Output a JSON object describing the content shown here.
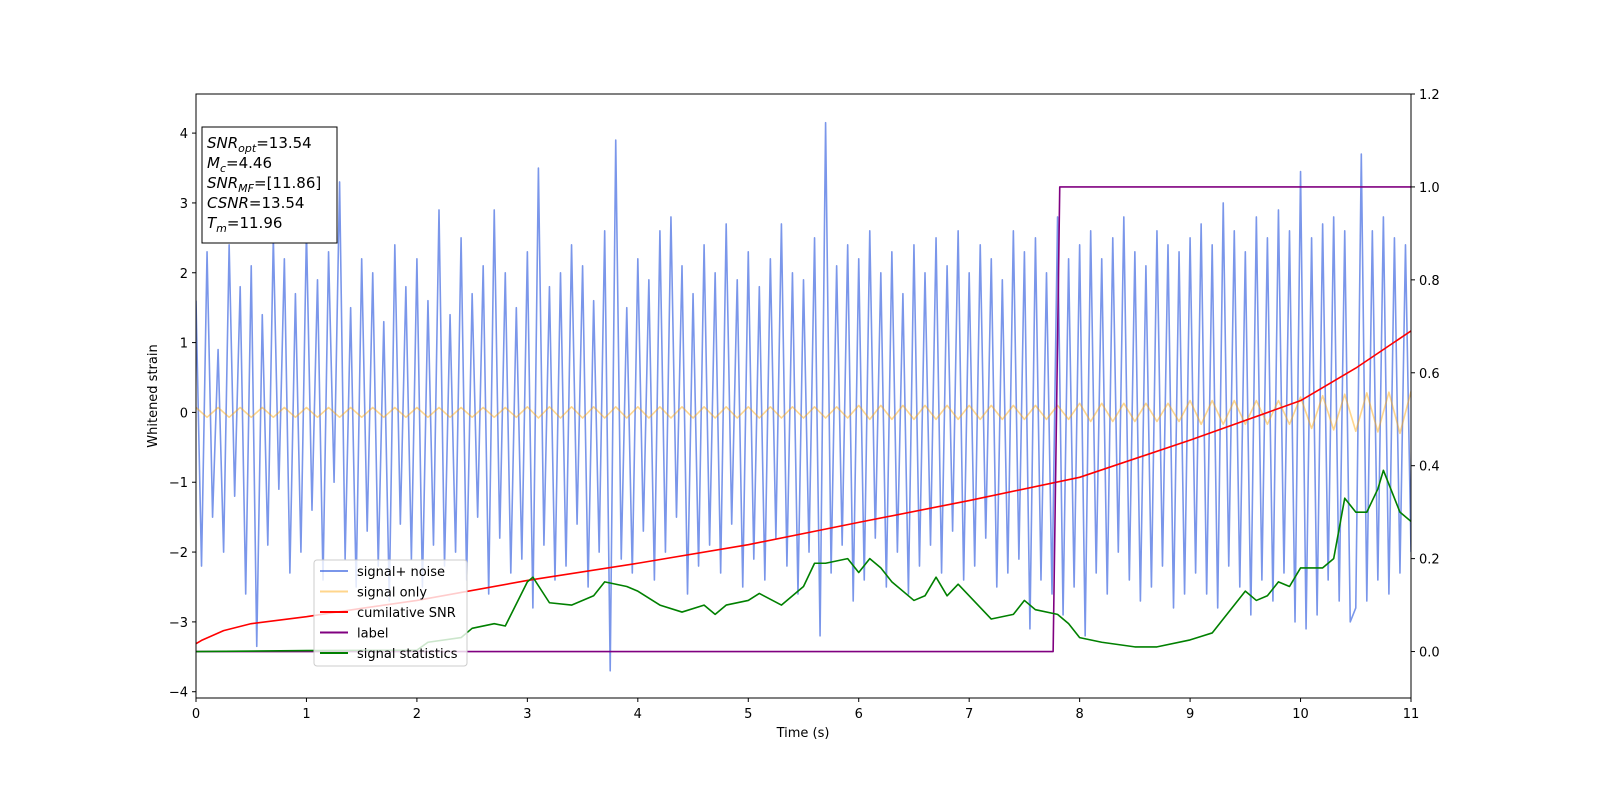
{
  "chart_data": {
    "type": "line",
    "xlabel": "Time (s)",
    "ylabel": "Whitened strain",
    "xlim": [
      0,
      11
    ],
    "ylim": [
      -4.09,
      4.56
    ],
    "y2lim": [
      -0.1,
      1.2
    ],
    "xticks": [
      0,
      1,
      2,
      3,
      4,
      5,
      6,
      7,
      8,
      9,
      10,
      11
    ],
    "yticks": [
      {
        "value": -4,
        "label": "−4"
      },
      {
        "value": -3,
        "label": "−3"
      },
      {
        "value": -2,
        "label": "−2"
      },
      {
        "value": -1,
        "label": "−1"
      },
      0,
      1,
      2,
      3,
      4
    ],
    "y2ticks": [
      {
        "value": 0,
        "label": "0.0"
      },
      0.2,
      0.4,
      0.6,
      0.8,
      {
        "value": 1,
        "label": "1.0"
      },
      1.2
    ],
    "annotation": [
      {
        "main": "SNR",
        "sub": "opt",
        "rest": "=13.54"
      },
      {
        "main": "M",
        "sub": "c",
        "rest": "=4.46"
      },
      {
        "main": "SNR",
        "sub": "MF",
        "rest": "=[11.86]"
      },
      {
        "main": "CSNR",
        "sub": "",
        "rest": "=13.54"
      },
      {
        "main": "T",
        "sub": "m",
        "rest": "=11.96"
      }
    ],
    "series": [
      {
        "name": "signal+ noise",
        "color": "#4169e1",
        "opacity": 0.7,
        "x": [
          0,
          0.05,
          0.1,
          0.15,
          0.2,
          0.25,
          0.3,
          0.35,
          0.4,
          0.45,
          0.5,
          0.55,
          0.6,
          0.65,
          0.7,
          0.75,
          0.8,
          0.85,
          0.9,
          0.95,
          1,
          1.05,
          1.1,
          1.15,
          1.2,
          1.25,
          1.3,
          1.35,
          1.4,
          1.45,
          1.5,
          1.55,
          1.6,
          1.65,
          1.7,
          1.75,
          1.8,
          1.85,
          1.9,
          1.95,
          2,
          2.05,
          2.1,
          2.15,
          2.2,
          2.25,
          2.3,
          2.35,
          2.4,
          2.45,
          2.5,
          2.55,
          2.6,
          2.65,
          2.7,
          2.75,
          2.8,
          2.85,
          2.9,
          2.95,
          3,
          3.05,
          3.1,
          3.15,
          3.2,
          3.25,
          3.3,
          3.35,
          3.4,
          3.45,
          3.5,
          3.55,
          3.6,
          3.65,
          3.7,
          3.75,
          3.8,
          3.85,
          3.9,
          3.95,
          4,
          4.05,
          4.1,
          4.15,
          4.2,
          4.25,
          4.3,
          4.35,
          4.4,
          4.45,
          4.5,
          4.55,
          4.6,
          4.65,
          4.7,
          4.75,
          4.8,
          4.85,
          4.9,
          4.95,
          5,
          5.05,
          5.1,
          5.15,
          5.2,
          5.25,
          5.3,
          5.35,
          5.4,
          5.45,
          5.5,
          5.55,
          5.6,
          5.65,
          5.7,
          5.75,
          5.8,
          5.85,
          5.9,
          5.95,
          6,
          6.05,
          6.1,
          6.15,
          6.2,
          6.25,
          6.3,
          6.35,
          6.4,
          6.45,
          6.5,
          6.55,
          6.6,
          6.65,
          6.7,
          6.75,
          6.8,
          6.85,
          6.9,
          6.95,
          7,
          7.05,
          7.1,
          7.15,
          7.2,
          7.25,
          7.3,
          7.35,
          7.4,
          7.45,
          7.5,
          7.55,
          7.6,
          7.65,
          7.7,
          7.75,
          7.8,
          7.85,
          7.9,
          7.95,
          8,
          8.05,
          8.1,
          8.15,
          8.2,
          8.25,
          8.3,
          8.35,
          8.4,
          8.45,
          8.5,
          8.55,
          8.6,
          8.65,
          8.7,
          8.75,
          8.8,
          8.85,
          8.9,
          8.95,
          9,
          9.05,
          9.1,
          9.15,
          9.2,
          9.25,
          9.3,
          9.35,
          9.4,
          9.45,
          9.5,
          9.55,
          9.6,
          9.65,
          9.7,
          9.75,
          9.8,
          9.85,
          9.9,
          9.95,
          10,
          10.05,
          10.1,
          10.15,
          10.2,
          10.25,
          10.3,
          10.35,
          10.4,
          10.45,
          10.5,
          10.55,
          10.6,
          10.65,
          10.7,
          10.75,
          10.8,
          10.85,
          10.9,
          10.95,
          11
        ],
        "values": [
          1.6,
          -2.2,
          2.3,
          -1.5,
          0.9,
          -2.0,
          2.4,
          -1.2,
          1.8,
          -2.6,
          2.1,
          -3.35,
          1.4,
          -1.9,
          2.5,
          -1.1,
          2.2,
          -2.3,
          1.7,
          -2.0,
          2.6,
          -1.4,
          1.9,
          -2.4,
          2.3,
          -1.0,
          3.3,
          -2.1,
          1.5,
          -2.5,
          2.2,
          -1.7,
          2.0,
          -2.2,
          1.3,
          -2.7,
          2.4,
          -1.6,
          1.8,
          -2.1,
          2.2,
          -2.5,
          1.6,
          -1.9,
          2.9,
          -2.2,
          1.4,
          -2.0,
          2.5,
          -2.4,
          1.7,
          -1.5,
          2.1,
          -2.6,
          2.9,
          -1.8,
          2.0,
          -2.3,
          1.5,
          -2.1,
          2.3,
          -2.8,
          3.5,
          -1.9,
          1.8,
          -2.4,
          2.0,
          -2.2,
          2.4,
          -1.6,
          2.1,
          -2.5,
          1.6,
          -2.0,
          2.6,
          -3.7,
          3.9,
          -2.1,
          1.5,
          -2.3,
          2.2,
          -1.7,
          1.9,
          -2.4,
          2.6,
          -2.0,
          2.8,
          -1.5,
          2.1,
          -2.6,
          1.7,
          -2.2,
          2.4,
          -1.9,
          2.0,
          -2.3,
          2.7,
          -1.6,
          1.9,
          -2.5,
          2.3,
          -2.1,
          1.8,
          -2.4,
          2.2,
          -1.8,
          2.7,
          -2.2,
          2.0,
          -2.6,
          1.9,
          -2.0,
          2.5,
          -3.2,
          4.15,
          -2.3,
          2.1,
          -1.9,
          2.4,
          -2.7,
          2.2,
          -2.4,
          2.6,
          -1.8,
          2.0,
          -2.5,
          2.3,
          -2.0,
          1.7,
          -2.6,
          2.4,
          -2.2,
          2.0,
          -1.9,
          2.5,
          -2.3,
          2.1,
          -1.7,
          2.6,
          -2.4,
          2.0,
          -2.2,
          2.4,
          -1.8,
          2.2,
          -2.5,
          1.9,
          -2.3,
          2.6,
          -2.1,
          2.3,
          -3.1,
          2.5,
          -2.4,
          2.0,
          -2.6,
          2.8,
          -2.9,
          2.2,
          -2.5,
          2.4,
          -3.2,
          2.6,
          -2.3,
          2.2,
          -2.6,
          2.5,
          -2.0,
          2.8,
          -2.4,
          2.3,
          -2.7,
          2.1,
          -2.5,
          2.6,
          -2.2,
          2.4,
          -2.8,
          2.3,
          -2.6,
          2.5,
          -2.3,
          2.7,
          -2.6,
          2.4,
          -2.8,
          3.0,
          -2.2,
          2.6,
          -2.5,
          2.3,
          -2.9,
          2.8,
          -2.4,
          2.5,
          -2.7,
          2.9,
          -2.3,
          2.6,
          -3.0,
          3.45,
          -3.1,
          2.5,
          -2.9,
          2.7,
          -2.4,
          2.8,
          -2.7,
          2.6,
          -3.0,
          -2.8,
          3.7,
          -2.7,
          2.6,
          -2.4,
          2.8,
          -2.6,
          2.5,
          -2.3,
          2.4,
          -2.0
        ]
      },
      {
        "name": "signal only",
        "color": "#ffa500",
        "opacity": 0.45,
        "x": [
          0,
          0.1,
          0.2,
          0.3,
          0.4,
          0.5,
          0.6,
          0.7,
          0.8,
          0.9,
          1,
          1.1,
          1.2,
          1.3,
          1.4,
          1.5,
          1.6,
          1.7,
          1.8,
          1.9,
          2,
          2.1,
          2.2,
          2.3,
          2.4,
          2.5,
          2.6,
          2.7,
          2.8,
          2.9,
          3,
          3.1,
          3.2,
          3.3,
          3.4,
          3.5,
          3.6,
          3.7,
          3.8,
          3.9,
          4,
          4.1,
          4.2,
          4.3,
          4.4,
          4.5,
          4.6,
          4.7,
          4.8,
          4.9,
          5,
          5.1,
          5.2,
          5.3,
          5.4,
          5.5,
          5.6,
          5.7,
          5.8,
          5.9,
          6,
          6.1,
          6.2,
          6.3,
          6.4,
          6.5,
          6.6,
          6.7,
          6.8,
          6.9,
          7,
          7.1,
          7.2,
          7.3,
          7.4,
          7.5,
          7.6,
          7.7,
          7.8,
          7.9,
          8,
          8.1,
          8.2,
          8.3,
          8.4,
          8.5,
          8.6,
          8.7,
          8.8,
          8.9,
          9,
          9.1,
          9.2,
          9.3,
          9.4,
          9.5,
          9.6,
          9.7,
          9.8,
          9.9,
          10,
          10.1,
          10.2,
          10.3,
          10.4,
          10.5,
          10.6,
          10.7,
          10.8,
          10.9,
          11
        ],
        "values": [
          0.07,
          -0.07,
          0.07,
          -0.07,
          0.07,
          -0.07,
          0.07,
          -0.07,
          0.07,
          -0.07,
          0.07,
          -0.07,
          0.07,
          -0.07,
          0.07,
          -0.07,
          0.07,
          -0.07,
          0.07,
          -0.07,
          0.07,
          -0.07,
          0.07,
          -0.07,
          0.07,
          -0.07,
          0.07,
          -0.07,
          0.07,
          -0.07,
          0.08,
          -0.08,
          0.08,
          -0.08,
          0.08,
          -0.08,
          0.08,
          -0.08,
          0.08,
          -0.08,
          0.08,
          -0.08,
          0.08,
          -0.08,
          0.08,
          -0.08,
          0.08,
          -0.08,
          0.08,
          -0.08,
          0.08,
          -0.08,
          0.08,
          -0.08,
          0.08,
          -0.08,
          0.08,
          -0.08,
          0.08,
          -0.08,
          0.1,
          -0.1,
          0.1,
          -0.1,
          0.1,
          -0.1,
          0.1,
          -0.1,
          0.1,
          -0.1,
          0.1,
          -0.1,
          0.1,
          -0.1,
          0.1,
          -0.1,
          0.1,
          -0.1,
          0.1,
          -0.1,
          0.13,
          -0.13,
          0.13,
          -0.13,
          0.13,
          -0.13,
          0.13,
          -0.13,
          0.13,
          -0.13,
          0.17,
          -0.17,
          0.17,
          -0.17,
          0.17,
          -0.17,
          0.17,
          -0.17,
          0.17,
          -0.17,
          0.22,
          -0.23,
          0.24,
          -0.25,
          0.26,
          -0.27,
          0.28,
          -0.28,
          0.29,
          -0.3,
          0.3
        ]
      },
      {
        "name": "cumilative SNR",
        "color": "#ff0000",
        "axis": "y2",
        "x": [
          0,
          0.05,
          0.25,
          0.5,
          1,
          1.5,
          2,
          3,
          4,
          5,
          6,
          7,
          8,
          9,
          10,
          10.5,
          11
        ],
        "values": [
          0.017,
          0.024,
          0.045,
          0.06,
          0.075,
          0.093,
          0.11,
          0.153,
          0.19,
          0.23,
          0.278,
          0.325,
          0.375,
          0.455,
          0.54,
          0.61,
          0.69
        ]
      },
      {
        "name": "label",
        "color": "#800080",
        "axis": "y2",
        "x": [
          0,
          7.76,
          7.82,
          11
        ],
        "values": [
          0,
          0,
          1,
          1
        ]
      },
      {
        "name": "signal statistics",
        "color": "#008000",
        "axis": "y2",
        "x": [
          0,
          1,
          2,
          2.1,
          2.4,
          2.5,
          2.7,
          2.8,
          3.0,
          3.05,
          3.2,
          3.4,
          3.6,
          3.7,
          3.9,
          4.0,
          4.2,
          4.4,
          4.6,
          4.7,
          4.8,
          5.0,
          5.1,
          5.3,
          5.5,
          5.6,
          5.7,
          5.9,
          6.0,
          6.1,
          6.2,
          6.3,
          6.5,
          6.6,
          6.7,
          6.8,
          6.9,
          7.0,
          7.2,
          7.4,
          7.5,
          7.6,
          7.8,
          7.9,
          8.0,
          8.2,
          8.5,
          8.7,
          9.0,
          9.2,
          9.3,
          9.5,
          9.6,
          9.7,
          9.8,
          9.9,
          10.0,
          10.2,
          10.3,
          10.4,
          10.5,
          10.6,
          10.7,
          10.75,
          10.9,
          11
        ],
        "values": [
          0,
          0.002,
          0.003,
          0.02,
          0.03,
          0.05,
          0.06,
          0.055,
          0.15,
          0.16,
          0.105,
          0.1,
          0.12,
          0.15,
          0.14,
          0.13,
          0.1,
          0.085,
          0.1,
          0.08,
          0.1,
          0.11,
          0.125,
          0.1,
          0.14,
          0.19,
          0.19,
          0.2,
          0.17,
          0.2,
          0.18,
          0.15,
          0.11,
          0.12,
          0.16,
          0.12,
          0.145,
          0.12,
          0.07,
          0.08,
          0.11,
          0.09,
          0.08,
          0.06,
          0.03,
          0.02,
          0.01,
          0.01,
          0.025,
          0.04,
          0.07,
          0.13,
          0.11,
          0.12,
          0.15,
          0.14,
          0.18,
          0.18,
          0.2,
          0.33,
          0.3,
          0.3,
          0.35,
          0.39,
          0.3,
          0.28
        ]
      }
    ]
  }
}
